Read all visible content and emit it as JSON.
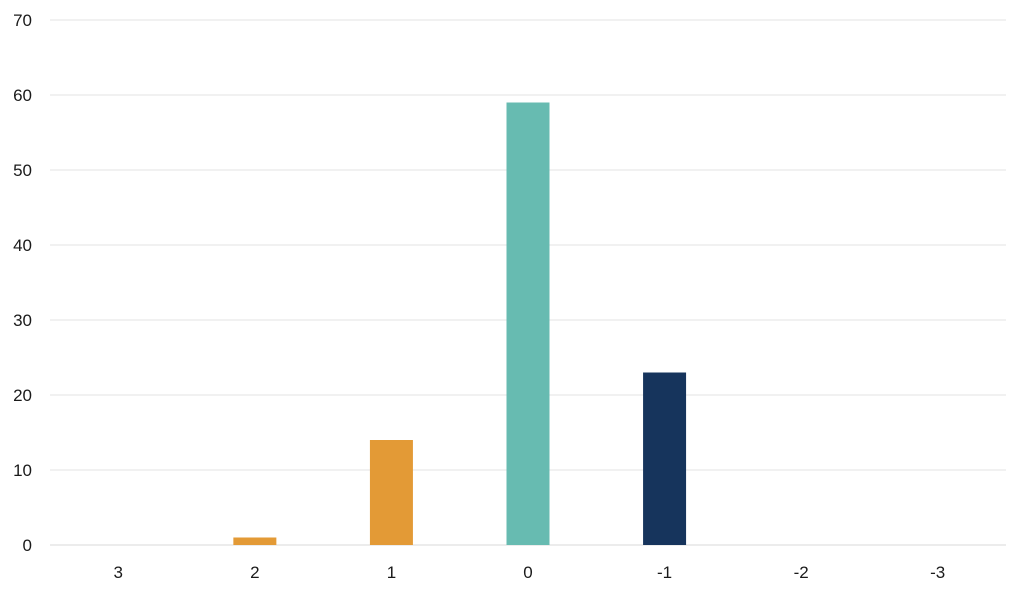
{
  "chart_data": {
    "type": "bar",
    "title": "",
    "xlabel": "",
    "ylabel": "",
    "categories": [
      "3",
      "2",
      "1",
      "0",
      "-1",
      "-2",
      "-3"
    ],
    "values": [
      0,
      1,
      14,
      59,
      23,
      0,
      0
    ],
    "bar_colors": [
      "#e39a36",
      "#e39a36",
      "#e39a36",
      "#67bbb1",
      "#16345c",
      "#16345c",
      "#16345c"
    ],
    "ylim": [
      0,
      70
    ],
    "yticks": [
      "0",
      "10",
      "20",
      "30",
      "40",
      "50",
      "60",
      "70"
    ],
    "grid": true,
    "legend": "none"
  }
}
